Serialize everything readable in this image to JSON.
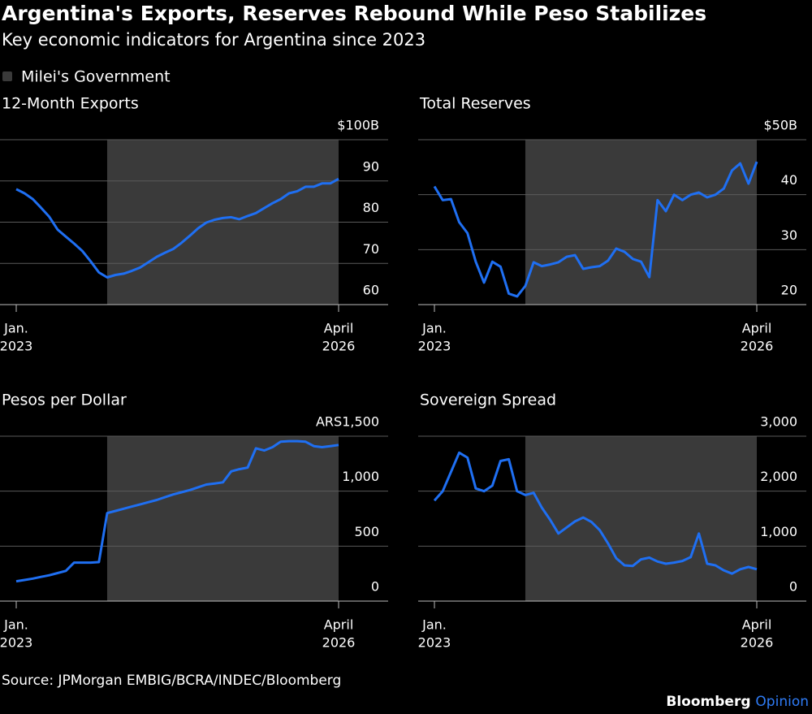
{
  "title": "Argentina's Exports, Reserves Rebound While Peso Stabilizes",
  "subtitle": "Key economic indicators for Argentina since 2023",
  "legend": {
    "name": "Milei's Government",
    "color": "#3a3a3a",
    "start": "2023-12"
  },
  "source": "Source: JPMorgan EMBIG/BCRA/INDEC/Bloomberg",
  "brand": [
    "Bloomberg",
    "Opinion"
  ],
  "chart_data": [
    {
      "type": "line",
      "title": "12-Month Exports",
      "color": "#1f6ff2",
      "x": [
        "2023-01",
        "2023-02",
        "2023-03",
        "2023-04",
        "2023-05",
        "2023-06",
        "2023-07",
        "2023-08",
        "2023-09",
        "2023-10",
        "2023-11",
        "2023-12",
        "2024-01",
        "2024-02",
        "2024-03",
        "2024-04",
        "2024-05",
        "2024-06",
        "2024-07",
        "2024-08",
        "2024-09",
        "2024-10",
        "2024-11",
        "2024-12",
        "2025-01",
        "2025-02",
        "2025-03",
        "2025-04",
        "2025-05",
        "2025-06",
        "2025-07",
        "2025-08",
        "2025-09",
        "2025-10",
        "2025-11",
        "2025-12",
        "2026-01",
        "2026-02",
        "2026-03",
        "2026-04"
      ],
      "values": [
        88.0,
        87.0,
        85.6,
        83.5,
        81.3,
        78.2,
        76.5,
        74.8,
        73.0,
        70.5,
        67.8,
        66.6,
        67.2,
        67.5,
        68.2,
        69.0,
        70.3,
        71.6,
        72.6,
        73.5,
        75.0,
        76.7,
        78.5,
        79.9,
        80.6,
        81.0,
        81.2,
        80.7,
        81.5,
        82.2,
        83.4,
        84.6,
        85.6,
        87.0,
        87.5,
        88.6,
        88.6,
        89.4,
        89.4,
        90.5
      ],
      "xlim": [
        "2023-01",
        "2026-04"
      ],
      "xticks": [
        {
          "value": "2023-01",
          "label": [
            "Jan.",
            "2023"
          ]
        },
        {
          "value": "2026-04",
          "label": [
            "April",
            "2026"
          ]
        }
      ],
      "ylim": [
        60,
        100
      ],
      "yticks": [
        60,
        70,
        80,
        90,
        {
          "value": 100,
          "label": "$100B"
        }
      ]
    },
    {
      "type": "line",
      "title": "Total Reserves",
      "color": "#1f6ff2",
      "x": [
        "2023-01",
        "2023-02",
        "2023-03",
        "2023-04",
        "2023-05",
        "2023-06",
        "2023-07",
        "2023-08",
        "2023-09",
        "2023-10",
        "2023-11",
        "2023-12",
        "2024-01",
        "2024-02",
        "2024-03",
        "2024-04",
        "2024-05",
        "2024-06",
        "2024-07",
        "2024-08",
        "2024-09",
        "2024-10",
        "2024-11",
        "2024-12",
        "2025-01",
        "2025-02",
        "2025-03",
        "2025-04",
        "2025-05",
        "2025-06",
        "2025-07",
        "2025-08",
        "2025-09",
        "2025-10",
        "2025-11",
        "2025-12",
        "2026-01",
        "2026-02",
        "2026-03",
        "2026-04"
      ],
      "values": [
        41.5,
        39.0,
        39.2,
        35.0,
        33.0,
        27.8,
        24.0,
        27.8,
        26.9,
        22.0,
        21.5,
        23.4,
        27.7,
        27.0,
        27.3,
        27.7,
        28.7,
        29.0,
        26.5,
        26.8,
        27.0,
        28.0,
        30.2,
        29.6,
        28.3,
        27.8,
        25.0,
        39.0,
        37.0,
        40.0,
        39.0,
        40.0,
        40.4,
        39.5,
        40.0,
        41.1,
        44.4,
        45.7,
        42.0,
        46.0
      ],
      "xlim": [
        "2023-01",
        "2026-04"
      ],
      "xticks": [
        {
          "value": "2023-01",
          "label": [
            "Jan.",
            "2023"
          ]
        },
        {
          "value": "2026-04",
          "label": [
            "April",
            "2026"
          ]
        }
      ],
      "ylim": [
        20,
        50
      ],
      "yticks": [
        20,
        30,
        40,
        {
          "value": 50,
          "label": "$50B"
        }
      ]
    },
    {
      "type": "line",
      "title": "Pesos per Dollar",
      "color": "#1f6ff2",
      "x": [
        "2023-01",
        "2023-02",
        "2023-03",
        "2023-04",
        "2023-05",
        "2023-06",
        "2023-07",
        "2023-08",
        "2023-09",
        "2023-10",
        "2023-11",
        "2023-12",
        "2024-01",
        "2024-02",
        "2024-03",
        "2024-04",
        "2024-05",
        "2024-06",
        "2024-07",
        "2024-08",
        "2024-09",
        "2024-10",
        "2024-11",
        "2024-12",
        "2025-01",
        "2025-02",
        "2025-03",
        "2025-04",
        "2025-05",
        "2025-06",
        "2025-07",
        "2025-08",
        "2025-09",
        "2025-10",
        "2025-11",
        "2025-12",
        "2026-01",
        "2026-02",
        "2026-03",
        "2026-04"
      ],
      "values": [
        180,
        192,
        205,
        220,
        235,
        255,
        275,
        350,
        350,
        350,
        355,
        800,
        820,
        840,
        860,
        880,
        900,
        920,
        945,
        970,
        990,
        1010,
        1035,
        1060,
        1070,
        1080,
        1180,
        1200,
        1215,
        1390,
        1370,
        1400,
        1450,
        1455,
        1455,
        1450,
        1410,
        1400,
        1410,
        1420
      ],
      "xlim": [
        "2023-01",
        "2026-04"
      ],
      "xticks": [
        {
          "value": "2023-01",
          "label": [
            "Jan.",
            "2023"
          ]
        },
        {
          "value": "2026-04",
          "label": [
            "April",
            "2026"
          ]
        }
      ],
      "ylim": [
        0,
        1500
      ],
      "yticks": [
        0,
        500,
        {
          "value": 1000,
          "label": "1,000"
        },
        {
          "value": 1500,
          "label": "ARS1,500"
        }
      ]
    },
    {
      "type": "line",
      "title": "Sovereign Spread",
      "color": "#1f6ff2",
      "x": [
        "2023-01",
        "2023-02",
        "2023-03",
        "2023-04",
        "2023-05",
        "2023-06",
        "2023-07",
        "2023-08",
        "2023-09",
        "2023-10",
        "2023-11",
        "2023-12",
        "2024-01",
        "2024-02",
        "2024-03",
        "2024-04",
        "2024-05",
        "2024-06",
        "2024-07",
        "2024-08",
        "2024-09",
        "2024-10",
        "2024-11",
        "2024-12",
        "2025-01",
        "2025-02",
        "2025-03",
        "2025-04",
        "2025-05",
        "2025-06",
        "2025-07",
        "2025-08",
        "2025-09",
        "2025-10",
        "2025-11",
        "2025-12",
        "2026-01",
        "2026-02",
        "2026-03",
        "2026-04"
      ],
      "values": [
        1830,
        2000,
        2350,
        2700,
        2610,
        2050,
        2000,
        2100,
        2550,
        2580,
        2000,
        1930,
        1970,
        1700,
        1480,
        1230,
        1340,
        1450,
        1520,
        1440,
        1290,
        1050,
        780,
        650,
        640,
        760,
        790,
        720,
        680,
        700,
        730,
        800,
        1230,
        680,
        650,
        560,
        500,
        580,
        620,
        580
      ],
      "xlim": [
        "2023-01",
        "2026-04"
      ],
      "xticks": [
        {
          "value": "2023-01",
          "label": [
            "Jan.",
            "2023"
          ]
        },
        {
          "value": "2026-04",
          "label": [
            "April",
            "2026"
          ]
        }
      ],
      "ylim": [
        0,
        3000
      ],
      "yticks": [
        0,
        {
          "value": 1000,
          "label": "1,000"
        },
        {
          "value": 2000,
          "label": "2,000"
        },
        {
          "value": 3000,
          "label": "3,000"
        }
      ]
    }
  ]
}
